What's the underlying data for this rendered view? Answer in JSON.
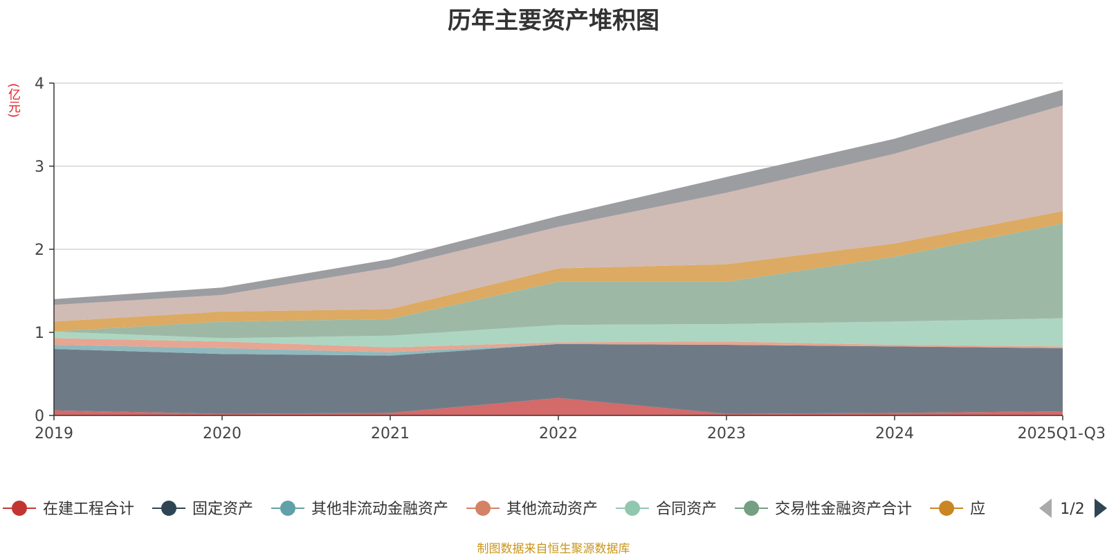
{
  "chart_data": {
    "type": "area",
    "stacked": true,
    "title": "历年主要资产堆积图",
    "unit_label": "(亿元)",
    "source": "制图数据来自恒生聚源数据库",
    "categories": [
      "2019",
      "2020",
      "2021",
      "2022",
      "2023",
      "2024",
      "2025Q1-Q3"
    ],
    "ylim": [
      0,
      4
    ],
    "yticks": [
      0,
      1,
      2,
      3,
      4
    ],
    "grid": true,
    "legend_position": "bottom",
    "legend_page": "1/2",
    "series": [
      {
        "name": "在建工程合计",
        "legend_color": "#c23531",
        "fill": "#d46a6a",
        "values": [
          0.06,
          0.02,
          0.03,
          0.21,
          0.02,
          0.03,
          0.05
        ]
      },
      {
        "name": "固定资产",
        "legend_color": "#2f4554",
        "fill": "#6e7b87",
        "values": [
          0.74,
          0.72,
          0.69,
          0.65,
          0.83,
          0.8,
          0.76
        ]
      },
      {
        "name": "其他非流动金融资产",
        "legend_color": "#61a0a8",
        "fill": "#8fb9be",
        "values": [
          0.05,
          0.07,
          0.04,
          0.0,
          0.0,
          0.0,
          0.0
        ]
      },
      {
        "name": "其他流动资产",
        "legend_color": "#d48265",
        "fill": "#e6a692",
        "values": [
          0.08,
          0.08,
          0.06,
          0.02,
          0.04,
          0.02,
          0.02
        ]
      },
      {
        "name": "合同资产",
        "legend_color": "#91c7ae",
        "fill": "#acd6c2",
        "values": [
          0.08,
          0.04,
          0.14,
          0.21,
          0.21,
          0.28,
          0.34
        ]
      },
      {
        "name": "交易性金融资产合计",
        "legend_color": "#749f83",
        "fill": "#9db9a5",
        "values": [
          0.0,
          0.2,
          0.2,
          0.52,
          0.51,
          0.78,
          1.14
        ]
      },
      {
        "name": "应",
        "legend_color": "#ca8622",
        "fill": "#dcaa62",
        "values": [
          0.12,
          0.12,
          0.12,
          0.16,
          0.21,
          0.16,
          0.15
        ]
      },
      {
        "name": "",
        "legend_color": "#bda29a",
        "fill": "#d1bbb5",
        "values": [
          0.2,
          0.2,
          0.5,
          0.5,
          0.86,
          1.08,
          1.27
        ]
      },
      {
        "name": "",
        "legend_color": "#6e7074",
        "fill": "#9c9da1",
        "values": [
          0.07,
          0.09,
          0.1,
          0.13,
          0.19,
          0.18,
          0.19
        ]
      }
    ]
  }
}
